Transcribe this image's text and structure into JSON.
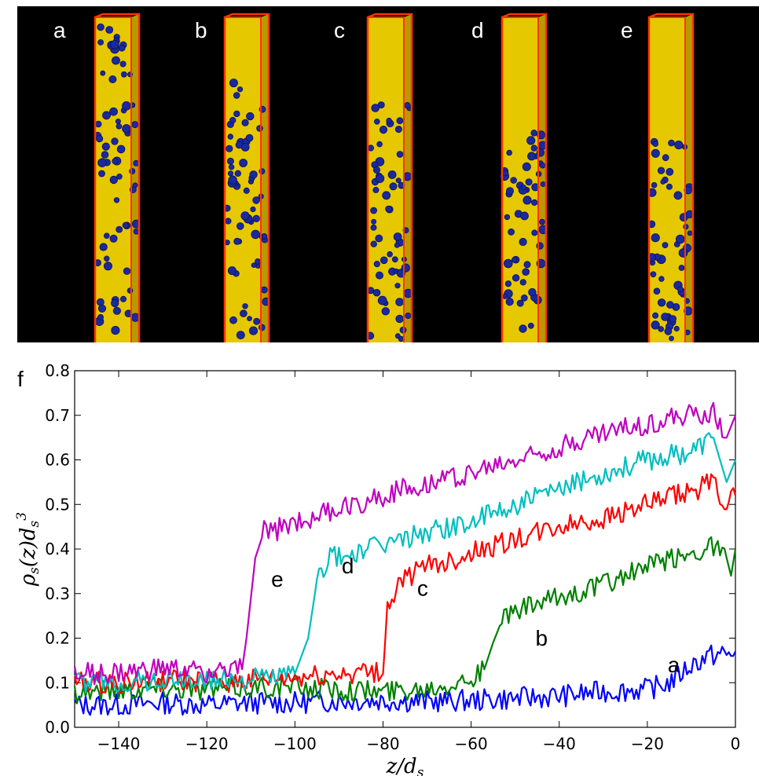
{
  "snapshots": {
    "labels": [
      "a",
      "b",
      "c",
      "d",
      "e"
    ],
    "interface_fraction": [
      0.0,
      0.19,
      0.26,
      0.33,
      0.37
    ],
    "colors": {
      "background": "#000000",
      "frame": "#ff3300",
      "solvent": "#e5c800",
      "particle": "#1a2a9c"
    }
  },
  "panel_label": "f",
  "chart_data": {
    "type": "line",
    "xlabel": "z/d_s",
    "ylabel": "ρ_s(z)d_s^3",
    "xlim": [
      -150,
      0
    ],
    "ylim": [
      0.0,
      0.8
    ],
    "xticks": [
      "−140",
      "−120",
      "−100",
      "−80",
      "−60",
      "−40",
      "−20",
      "0"
    ],
    "xtick_values": [
      -140,
      -120,
      -100,
      -80,
      -60,
      -40,
      -20,
      0
    ],
    "yticks": [
      "0.0",
      "0.1",
      "0.2",
      "0.3",
      "0.4",
      "0.5",
      "0.6",
      "0.7",
      "0.8"
    ],
    "ytick_values": [
      0.0,
      0.1,
      0.2,
      0.3,
      0.4,
      0.5,
      0.6,
      0.7,
      0.8
    ],
    "grid": false,
    "series": [
      {
        "name": "a",
        "color": "#0000ff",
        "label_at": [
          -14,
          0.123
        ],
        "x": [
          -150,
          -140,
          -130,
          -120,
          -110,
          -100,
          -90,
          -80,
          -70,
          -60,
          -50,
          -40,
          -30,
          -20,
          -15,
          -10,
          -6,
          -3,
          -1,
          0
        ],
        "y": [
          0.05,
          0.05,
          0.055,
          0.05,
          0.055,
          0.055,
          0.06,
          0.06,
          0.058,
          0.06,
          0.065,
          0.07,
          0.08,
          0.085,
          0.1,
          0.14,
          0.16,
          0.165,
          0.16,
          0.17
        ]
      },
      {
        "name": "b",
        "color": "#008000",
        "label_at": [
          -44,
          0.183
        ],
        "x": [
          -150,
          -140,
          -130,
          -120,
          -110,
          -100,
          -90,
          -80,
          -70,
          -60,
          -57,
          -55,
          -53,
          -50,
          -40,
          -30,
          -20,
          -10,
          -5,
          -2,
          -1,
          0
        ],
        "y": [
          0.08,
          0.085,
          0.09,
          0.085,
          0.09,
          0.09,
          0.085,
          0.08,
          0.09,
          0.11,
          0.13,
          0.19,
          0.24,
          0.26,
          0.29,
          0.32,
          0.36,
          0.39,
          0.41,
          0.38,
          0.34,
          0.4
        ]
      },
      {
        "name": "c",
        "color": "#ff0000",
        "label_at": [
          -71,
          0.295
        ],
        "x": [
          -150,
          -140,
          -130,
          -120,
          -110,
          -100,
          -90,
          -85,
          -82,
          -80,
          -79,
          -76,
          -70,
          -60,
          -50,
          -40,
          -30,
          -20,
          -10,
          -5,
          -2,
          0
        ],
        "y": [
          0.1,
          0.1,
          0.105,
          0.1,
          0.105,
          0.11,
          0.12,
          0.125,
          0.12,
          0.12,
          0.27,
          0.33,
          0.36,
          0.39,
          0.42,
          0.45,
          0.47,
          0.5,
          0.53,
          0.55,
          0.5,
          0.52
        ]
      },
      {
        "name": "d",
        "color": "#00bfbf",
        "label_at": [
          -88,
          0.345
        ],
        "x": [
          -150,
          -140,
          -130,
          -120,
          -110,
          -100,
          -97,
          -95,
          -92,
          -90,
          -80,
          -70,
          -60,
          -50,
          -40,
          -30,
          -20,
          -10,
          -5,
          -2,
          0
        ],
        "y": [
          0.1,
          0.1,
          0.105,
          0.105,
          0.11,
          0.12,
          0.2,
          0.33,
          0.39,
          0.38,
          0.41,
          0.44,
          0.46,
          0.5,
          0.53,
          0.57,
          0.6,
          0.62,
          0.65,
          0.55,
          0.6
        ]
      },
      {
        "name": "e",
        "color": "#bf00bf",
        "label_at": [
          -104,
          0.315
        ],
        "x": [
          -150,
          -140,
          -130,
          -120,
          -112,
          -111,
          -109,
          -107,
          -105,
          -100,
          -90,
          -80,
          -70,
          -60,
          -50,
          -40,
          -30,
          -20,
          -10,
          -5,
          -2,
          0
        ],
        "y": [
          0.12,
          0.12,
          0.13,
          0.125,
          0.13,
          0.2,
          0.38,
          0.44,
          0.44,
          0.46,
          0.49,
          0.52,
          0.55,
          0.57,
          0.6,
          0.63,
          0.66,
          0.68,
          0.7,
          0.71,
          0.65,
          0.7
        ]
      }
    ]
  }
}
